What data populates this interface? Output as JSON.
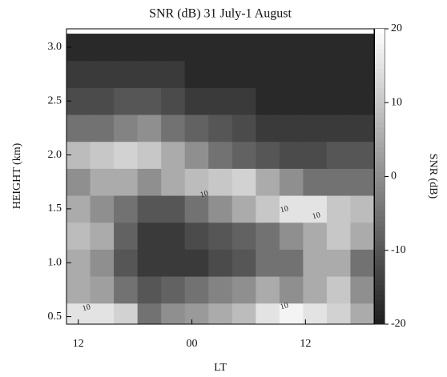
{
  "chart_data": {
    "type": "heatmap",
    "title": "SNR (dB) 31 July-1 August",
    "x_label": "LT",
    "y_label": "HEIGHT (km)",
    "colorbar_label": "SNR (dB)",
    "x": [
      12,
      14.5,
      17,
      19.5,
      22,
      24.5,
      27,
      29.5,
      32,
      34.5,
      37,
      39.5,
      42
    ],
    "y": [
      0.5,
      0.75,
      1.0,
      1.25,
      1.5,
      1.75,
      2.0,
      2.25,
      2.5,
      2.75,
      3.0
    ],
    "z": [
      [
        15,
        15,
        12,
        -5,
        0,
        2,
        5,
        8,
        15,
        18,
        15,
        12,
        5
      ],
      [
        5,
        3,
        -5,
        -10,
        -8,
        -5,
        -2,
        0,
        5,
        0,
        5,
        10,
        0
      ],
      [
        5,
        0,
        -10,
        -15,
        -15,
        -15,
        -12,
        -10,
        -5,
        -5,
        5,
        5,
        -5
      ],
      [
        8,
        5,
        -8,
        -15,
        -15,
        -12,
        -10,
        -8,
        -5,
        0,
        5,
        10,
        5
      ],
      [
        5,
        0,
        -5,
        -10,
        -10,
        -5,
        0,
        5,
        10,
        15,
        15,
        10,
        8
      ],
      [
        0,
        5,
        5,
        0,
        5,
        8,
        10,
        12,
        5,
        0,
        -5,
        -5,
        -5
      ],
      [
        8,
        10,
        12,
        10,
        5,
        0,
        -5,
        -8,
        -10,
        -12,
        -12,
        -10,
        -10
      ],
      [
        -5,
        -5,
        -2,
        0,
        -5,
        -8,
        -10,
        -12,
        -15,
        -15,
        -15,
        -15,
        -15
      ],
      [
        -12,
        -12,
        -10,
        -10,
        -12,
        -15,
        -15,
        -15,
        -18,
        -18,
        -18,
        -18,
        -18
      ],
      [
        -15,
        -15,
        -15,
        -15,
        -15,
        -18,
        -18,
        -18,
        -18,
        -18,
        -18,
        -18,
        -18
      ],
      [
        -18,
        -18,
        -18,
        -18,
        -18,
        -18,
        -18,
        -18,
        -18,
        -18,
        -18,
        -18,
        -18
      ]
    ],
    "contour_labels": [
      10,
      10,
      10,
      10,
      10
    ],
    "xlim": [
      10.75,
      43.25
    ],
    "xticks": [
      {
        "value": 12,
        "label": "12"
      },
      {
        "value": 24,
        "label": "00"
      },
      {
        "value": 36,
        "label": "12"
      }
    ],
    "ylim": [
      0.43,
      3.17
    ],
    "yticks": [
      0.5,
      {
        "value": 1,
        "label": "1.0"
      },
      1.5,
      {
        "value": 2,
        "label": "2.0"
      },
      2.5,
      {
        "value": 3,
        "label": "3.0"
      }
    ],
    "zlim": [
      -20,
      20
    ],
    "zticks": [
      20,
      10,
      0,
      -10,
      -20
    ]
  }
}
